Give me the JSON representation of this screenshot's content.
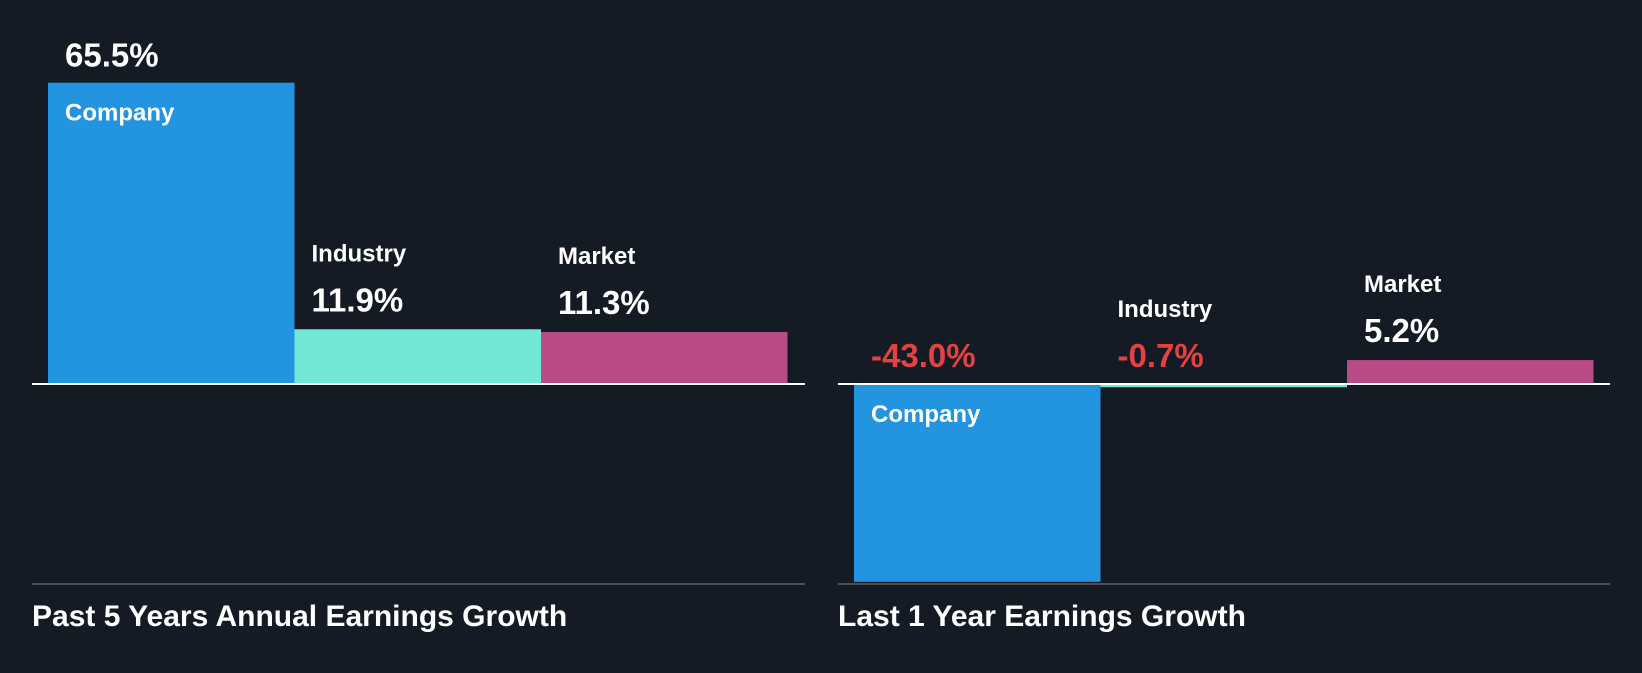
{
  "colors": {
    "background": "#151b24",
    "company": "#2394df",
    "industry": "#71e7d6",
    "market": "#b94b87",
    "value_positive": "#ffffff",
    "value_negative": "#e64141",
    "axis": "#ffffff",
    "baseline": "#4a4f57"
  },
  "chart_data": [
    {
      "type": "bar",
      "title": "Past 5 Years Annual Earnings Growth",
      "categories": [
        "Company",
        "Industry",
        "Market"
      ],
      "values": [
        65.5,
        11.9,
        11.3
      ],
      "value_labels": [
        "65.5%",
        "11.9%",
        "11.3%"
      ],
      "ylim": [
        -43.8,
        65.5
      ],
      "grid": false,
      "legend": "none"
    },
    {
      "type": "bar",
      "title": "Last 1 Year Earnings Growth",
      "categories": [
        "Company",
        "Industry",
        "Market"
      ],
      "values": [
        -43.0,
        -0.7,
        5.2
      ],
      "value_labels": [
        "-43.0%",
        "-0.7%",
        "5.2%"
      ],
      "ylim": [
        -43.8,
        65.5
      ],
      "grid": false,
      "legend": "none"
    }
  ]
}
